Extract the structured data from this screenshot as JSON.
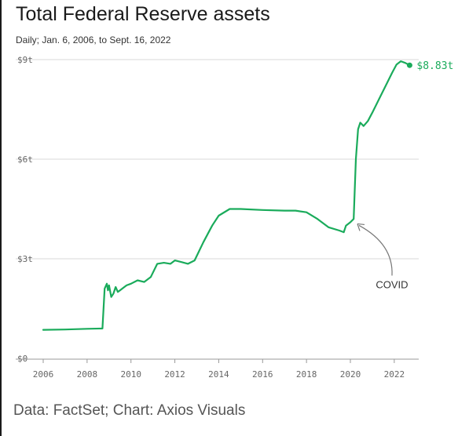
{
  "header": {
    "title": "Total Federal Reserve assets",
    "subtitle": "Daily; Jan. 6, 2006, to Sept. 16, 2022"
  },
  "footer": {
    "source": "Data: FactSet; Chart: Axios Visuals"
  },
  "colors": {
    "line": "#1aab5b",
    "grid": "#d9d9d9",
    "axis": "#999999",
    "text": "#1a1a1a"
  },
  "chart_data": {
    "type": "line",
    "title": "Total Federal Reserve assets",
    "subtitle": "Daily; Jan. 6, 2006, to Sept. 16, 2022",
    "xlabel": "",
    "ylabel": "",
    "xlim": [
      2006,
      2022.9
    ],
    "ylim": [
      0,
      9
    ],
    "grid": true,
    "legend": "none",
    "x_ticks": [
      2006,
      2008,
      2010,
      2012,
      2014,
      2016,
      2018,
      2020,
      2022
    ],
    "x_tick_labels": [
      "2006",
      "2008",
      "2010",
      "2012",
      "2014",
      "2016",
      "2018",
      "2020",
      "2022"
    ],
    "y_ticks": [
      0,
      3,
      6,
      9
    ],
    "y_tick_labels": [
      "$0",
      "$3t",
      "$6t",
      "$9t"
    ],
    "series": [
      {
        "x": [
          2006.0,
          2007.0,
          2008.0,
          2008.7,
          2008.75,
          2008.8,
          2008.9,
          2008.95,
          2009.0,
          2009.1,
          2009.2,
          2009.3,
          2009.4,
          2009.5,
          2009.6,
          2009.8,
          2010.0,
          2010.3,
          2010.6,
          2010.9,
          2011.2,
          2011.5,
          2011.8,
          2012.0,
          2012.3,
          2012.6,
          2012.9,
          2013.3,
          2013.7,
          2014.0,
          2014.5,
          2015.0,
          2016.0,
          2017.0,
          2017.5,
          2018.0,
          2018.5,
          2019.0,
          2019.5,
          2019.7,
          2019.8,
          2020.0,
          2020.15,
          2020.25,
          2020.35,
          2020.45,
          2020.6,
          2020.8,
          2021.0,
          2021.3,
          2021.6,
          2021.9,
          2022.1,
          2022.3,
          2022.5,
          2022.7
        ],
        "values": [
          0.86,
          0.87,
          0.89,
          0.9,
          1.5,
          2.1,
          2.25,
          2.05,
          2.2,
          1.85,
          1.95,
          2.15,
          2.0,
          2.05,
          2.1,
          2.2,
          2.25,
          2.35,
          2.3,
          2.45,
          2.85,
          2.88,
          2.85,
          2.95,
          2.9,
          2.85,
          2.95,
          3.5,
          4.0,
          4.3,
          4.5,
          4.5,
          4.47,
          4.45,
          4.45,
          4.4,
          4.2,
          3.95,
          3.85,
          3.8,
          4.0,
          4.1,
          4.2,
          6.0,
          6.9,
          7.1,
          7.0,
          7.15,
          7.4,
          7.8,
          8.2,
          8.6,
          8.85,
          8.95,
          8.9,
          8.83
        ]
      }
    ],
    "end_label": "$8.83t",
    "annotations": [
      {
        "text": "COVID",
        "x": 2020.25,
        "y": 4.1
      }
    ]
  }
}
